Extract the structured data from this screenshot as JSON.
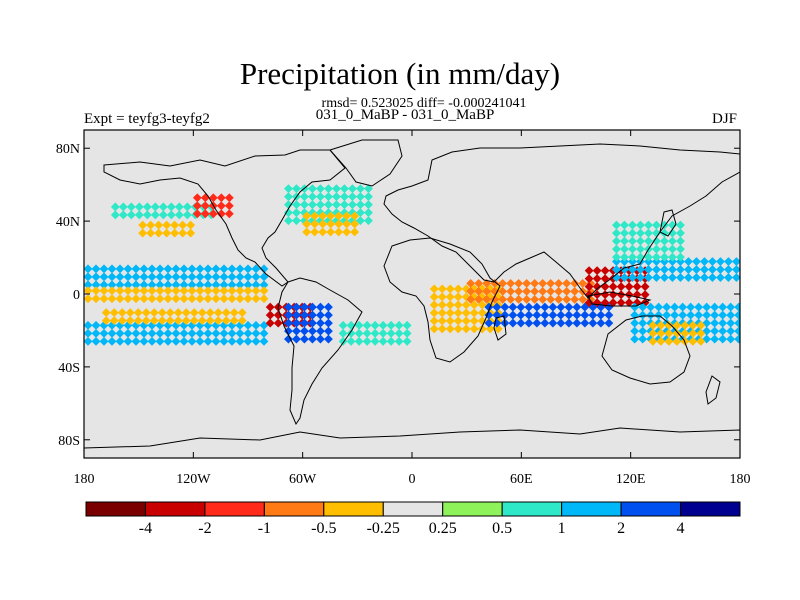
{
  "title": "Precipitation (in mm/day)",
  "stats_line": "rmsd= 0.523025 diff= -0.000241041",
  "experiments_line": "031_0_MaBP - 031_0_MaBP",
  "expt_label": "Expt = teyfg3-teyfg2",
  "season": "DJF",
  "map": {
    "projection": "cylindrical equidistant",
    "lon_range": [
      -180,
      180
    ],
    "lat_range": [
      -90,
      90
    ],
    "background_color": "#e5e5e5",
    "lat_ticks": [
      {
        "value": 80,
        "label": "80N"
      },
      {
        "value": 40,
        "label": "40N"
      },
      {
        "value": 0,
        "label": "0"
      },
      {
        "value": -40,
        "label": "40S"
      },
      {
        "value": -80,
        "label": "80S"
      }
    ],
    "lon_ticks": [
      {
        "value": -180,
        "label": "180"
      },
      {
        "value": -120,
        "label": "120W"
      },
      {
        "value": -60,
        "label": "60W"
      },
      {
        "value": 0,
        "label": "0"
      },
      {
        "value": 60,
        "label": "60E"
      },
      {
        "value": 120,
        "label": "120E"
      },
      {
        "value": 180,
        "label": "180"
      }
    ],
    "anomaly_regions": [
      {
        "name": "north-pacific-dry",
        "lon": [
          -150,
          -120
        ],
        "lat": [
          30,
          40
        ],
        "level": -0.5
      },
      {
        "name": "north-pacific-wet",
        "lon": [
          -165,
          -110
        ],
        "lat": [
          40,
          50
        ],
        "level": 0.5
      },
      {
        "name": "alaska-dipole",
        "lon": [
          -120,
          -100
        ],
        "lat": [
          40,
          55
        ],
        "level": -2
      },
      {
        "name": "north-atlantic-wet",
        "lon": [
          -70,
          -20
        ],
        "lat": [
          40,
          60
        ],
        "level": 0.5
      },
      {
        "name": "north-atlantic-dry",
        "lon": [
          -60,
          -30
        ],
        "lat": [
          30,
          45
        ],
        "level": -0.5
      },
      {
        "name": "east-pacific-itcz-wet",
        "lon": [
          -180,
          -80
        ],
        "lat": [
          4,
          16
        ],
        "level": 1
      },
      {
        "name": "east-pacific-eq-dry",
        "lon": [
          -180,
          -80
        ],
        "lat": [
          -6,
          4
        ],
        "level": -0.5
      },
      {
        "name": "south-pacific-wet",
        "lon": [
          -180,
          -80
        ],
        "lat": [
          -30,
          -15
        ],
        "level": 1
      },
      {
        "name": "south-pacific-dry",
        "lon": [
          -170,
          -90
        ],
        "lat": [
          -16,
          -8
        ],
        "level": -0.5
      },
      {
        "name": "amazon-dry",
        "lon": [
          -80,
          -55
        ],
        "lat": [
          -20,
          -5
        ],
        "level": -4
      },
      {
        "name": "brazil-wet",
        "lon": [
          -70,
          -45
        ],
        "lat": [
          -25,
          -5
        ],
        "level": 2
      },
      {
        "name": "south-atlantic-wet",
        "lon": [
          -40,
          0
        ],
        "lat": [
          -30,
          -15
        ],
        "level": 0.5
      },
      {
        "name": "africa-dry",
        "lon": [
          10,
          50
        ],
        "lat": [
          -20,
          5
        ],
        "level": -0.5
      },
      {
        "name": "indian-ocean-wet",
        "lon": [
          40,
          110
        ],
        "lat": [
          -18,
          -5
        ],
        "level": 2
      },
      {
        "name": "indian-ocean-dry",
        "lon": [
          30,
          100
        ],
        "lat": [
          -5,
          8
        ],
        "level": -1
      },
      {
        "name": "maritime-continent-dry",
        "lon": [
          95,
          130
        ],
        "lat": [
          -8,
          15
        ],
        "level": -4
      },
      {
        "name": "west-pacific-wet",
        "lon": [
          110,
          180
        ],
        "lat": [
          5,
          20
        ],
        "level": 1
      },
      {
        "name": "west-pacific-south-wet",
        "lon": [
          120,
          180
        ],
        "lat": [
          -25,
          -5
        ],
        "level": 1
      },
      {
        "name": "east-asia-wet",
        "lon": [
          110,
          150
        ],
        "lat": [
          20,
          40
        ],
        "level": 0.5
      },
      {
        "name": "australia-dry",
        "lon": [
          130,
          160
        ],
        "lat": [
          -30,
          -15
        ],
        "level": -0.5
      }
    ]
  },
  "colorbar": {
    "colors": [
      "#7a0000",
      "#c80000",
      "#ff2a1a",
      "#ff7a14",
      "#ffbe00",
      "#e5e5e5",
      "#8ef25a",
      "#2ee8c8",
      "#00b8f8",
      "#0050f0",
      "#000090"
    ],
    "labels": [
      "-4",
      "-2",
      "-1",
      "-0.5",
      "-0.25",
      "0.25",
      "0.5",
      "1",
      "2",
      "4"
    ],
    "levels": [
      -4,
      -2,
      -1,
      -0.5,
      -0.25,
      0.25,
      0.5,
      1,
      2,
      4
    ]
  }
}
